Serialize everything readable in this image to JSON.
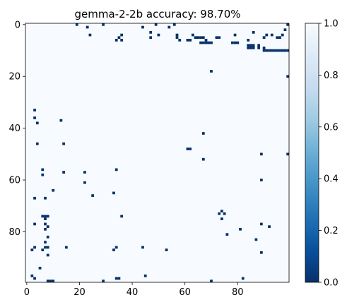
{
  "chart_data": {
    "type": "heatmap",
    "title": "gemma-2-2b accuracy: 98.70%",
    "xlabel": "",
    "ylabel": "",
    "grid": false,
    "shape": [
      100,
      100
    ],
    "xlim": [
      -0.5,
      99.5
    ],
    "ylim": [
      99.5,
      -0.5
    ],
    "x_ticks": [
      0,
      20,
      40,
      60,
      80
    ],
    "y_ticks": [
      0,
      20,
      40,
      60,
      80
    ],
    "colormap": "Blues_r",
    "colorbar": {
      "range": [
        0.0,
        1.0
      ],
      "ticks": [
        "0.0",
        "0.2",
        "0.4",
        "0.6",
        "0.8",
        "1.0"
      ],
      "placement": "right"
    },
    "colors": {
      "low": "#08306b",
      "high": "#f7fbff"
    },
    "background_value": 1.0,
    "low_value_cells": [
      [
        0,
        19
      ],
      [
        0,
        29
      ],
      [
        0,
        49
      ],
      [
        0,
        56
      ],
      [
        0,
        99
      ],
      [
        1,
        23
      ],
      [
        1,
        44
      ],
      [
        1,
        54
      ],
      [
        2,
        98
      ],
      [
        3,
        47
      ],
      [
        3,
        86
      ],
      [
        4,
        24
      ],
      [
        4,
        36
      ],
      [
        4,
        50
      ],
      [
        4,
        57
      ],
      [
        4,
        63
      ],
      [
        4,
        79
      ],
      [
        4,
        91
      ],
      [
        4,
        93
      ],
      [
        4,
        97
      ],
      [
        5,
        35
      ],
      [
        5,
        47
      ],
      [
        5,
        57
      ],
      [
        5,
        64
      ],
      [
        5,
        65
      ],
      [
        5,
        66
      ],
      [
        5,
        67
      ],
      [
        5,
        72
      ],
      [
        5,
        73
      ],
      [
        5,
        90
      ],
      [
        5,
        95
      ],
      [
        5,
        96
      ],
      [
        6,
        34
      ],
      [
        6,
        36
      ],
      [
        6,
        58
      ],
      [
        6,
        61
      ],
      [
        6,
        62
      ],
      [
        6,
        68
      ],
      [
        6,
        84
      ],
      [
        7,
        66
      ],
      [
        7,
        67
      ],
      [
        7,
        68
      ],
      [
        7,
        69
      ],
      [
        7,
        70
      ],
      [
        7,
        78
      ],
      [
        7,
        79
      ],
      [
        7,
        80
      ],
      [
        8,
        84
      ],
      [
        8,
        85
      ],
      [
        8,
        86
      ],
      [
        8,
        88
      ],
      [
        9,
        84
      ],
      [
        9,
        85
      ],
      [
        9,
        86
      ],
      [
        9,
        88
      ],
      [
        9,
        90
      ],
      [
        10,
        90
      ],
      [
        10,
        91
      ],
      [
        10,
        92
      ],
      [
        10,
        93
      ],
      [
        10,
        94
      ],
      [
        10,
        95
      ],
      [
        10,
        96
      ],
      [
        10,
        97
      ],
      [
        10,
        98
      ],
      [
        10,
        99
      ],
      [
        18,
        70
      ],
      [
        20,
        99
      ],
      [
        33,
        3
      ],
      [
        36,
        3
      ],
      [
        37,
        13
      ],
      [
        38,
        4
      ],
      [
        42,
        67
      ],
      [
        46,
        4
      ],
      [
        46,
        14
      ],
      [
        48,
        61
      ],
      [
        48,
        62
      ],
      [
        50,
        89
      ],
      [
        50,
        99
      ],
      [
        52,
        67
      ],
      [
        56,
        6
      ],
      [
        57,
        14
      ],
      [
        57,
        22
      ],
      [
        56,
        34
      ],
      [
        58,
        6
      ],
      [
        60,
        89
      ],
      [
        61,
        22
      ],
      [
        64,
        10
      ],
      [
        65,
        33
      ],
      [
        66,
        25
      ],
      [
        67,
        3
      ],
      [
        67,
        7
      ],
      [
        72,
        74
      ],
      [
        73,
        73
      ],
      [
        73,
        75
      ],
      [
        74,
        6
      ],
      [
        74,
        7
      ],
      [
        74,
        8
      ],
      [
        74,
        36
      ],
      [
        75,
        74
      ],
      [
        75,
        7
      ],
      [
        77,
        3
      ],
      [
        77,
        7
      ],
      [
        77,
        89
      ],
      [
        78,
        8
      ],
      [
        78,
        92
      ],
      [
        79,
        81
      ],
      [
        79,
        7
      ],
      [
        81,
        76
      ],
      [
        82,
        8
      ],
      [
        83,
        87
      ],
      [
        84,
        7
      ],
      [
        86,
        3
      ],
      [
        86,
        7
      ],
      [
        86,
        8
      ],
      [
        86,
        15
      ],
      [
        86,
        34
      ],
      [
        86,
        44
      ],
      [
        87,
        2
      ],
      [
        87,
        6
      ],
      [
        87,
        33
      ],
      [
        87,
        53
      ],
      [
        88,
        89
      ],
      [
        89,
        8
      ],
      [
        94,
        5
      ],
      [
        97,
        2
      ],
      [
        98,
        34
      ],
      [
        98,
        35
      ],
      [
        97,
        45
      ],
      [
        98,
        3
      ],
      [
        99,
        8
      ],
      [
        99,
        9
      ],
      [
        99,
        10
      ],
      [
        99,
        29
      ],
      [
        98,
        82
      ],
      [
        99,
        70
      ]
    ]
  }
}
